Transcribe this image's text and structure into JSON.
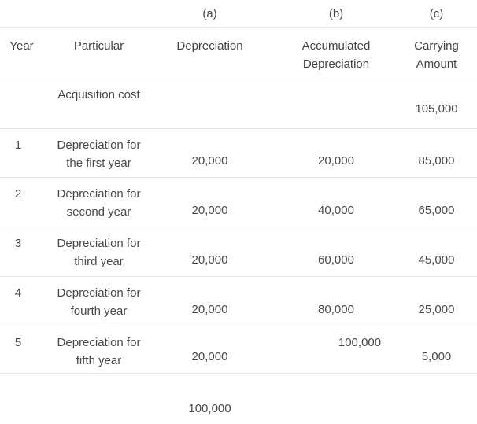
{
  "page": {
    "background": "#ffffff",
    "rule_color": "#e6e6e6",
    "text_color": "#45484d"
  },
  "table": {
    "column_letters": {
      "a": "(a)",
      "b": "(b)",
      "c": "(c)"
    },
    "headers": {
      "year": "Year",
      "particular": "Particular",
      "depreciation": "Depreciation",
      "accumulated_line1": "Accumulated",
      "accumulated_line2": "Depreciation",
      "carrying_line1": "Carrying",
      "carrying_line2": "Amount"
    },
    "rows": [
      {
        "year": "",
        "particular_line1": "Acquisition cost",
        "particular_line2": "",
        "depreciation": "",
        "accumulated": "",
        "carrying": "105,000"
      },
      {
        "year": "1",
        "particular_line1": "Depreciation for",
        "particular_line2": "the first year",
        "depreciation": "20,000",
        "accumulated": "20,000",
        "carrying": "85,000"
      },
      {
        "year": "2",
        "particular_line1": "Depreciation for",
        "particular_line2": "second year",
        "depreciation": "20,000",
        "accumulated": "40,000",
        "carrying": "65,000"
      },
      {
        "year": "3",
        "particular_line1": "Depreciation for",
        "particular_line2": "third year",
        "depreciation": "20,000",
        "accumulated": "60,000",
        "carrying": "45,000"
      },
      {
        "year": "4",
        "particular_line1": "Depreciation for",
        "particular_line2": "fourth year",
        "depreciation": "20,000",
        "accumulated": "80,000",
        "carrying": "25,000"
      },
      {
        "year": "5",
        "particular_line1": "Depreciation for",
        "particular_line2": "fifth year",
        "depreciation": "20,000",
        "accumulated": "100,000",
        "carrying": "5,000"
      }
    ],
    "footer": {
      "depreciation_total": "100,000"
    }
  }
}
